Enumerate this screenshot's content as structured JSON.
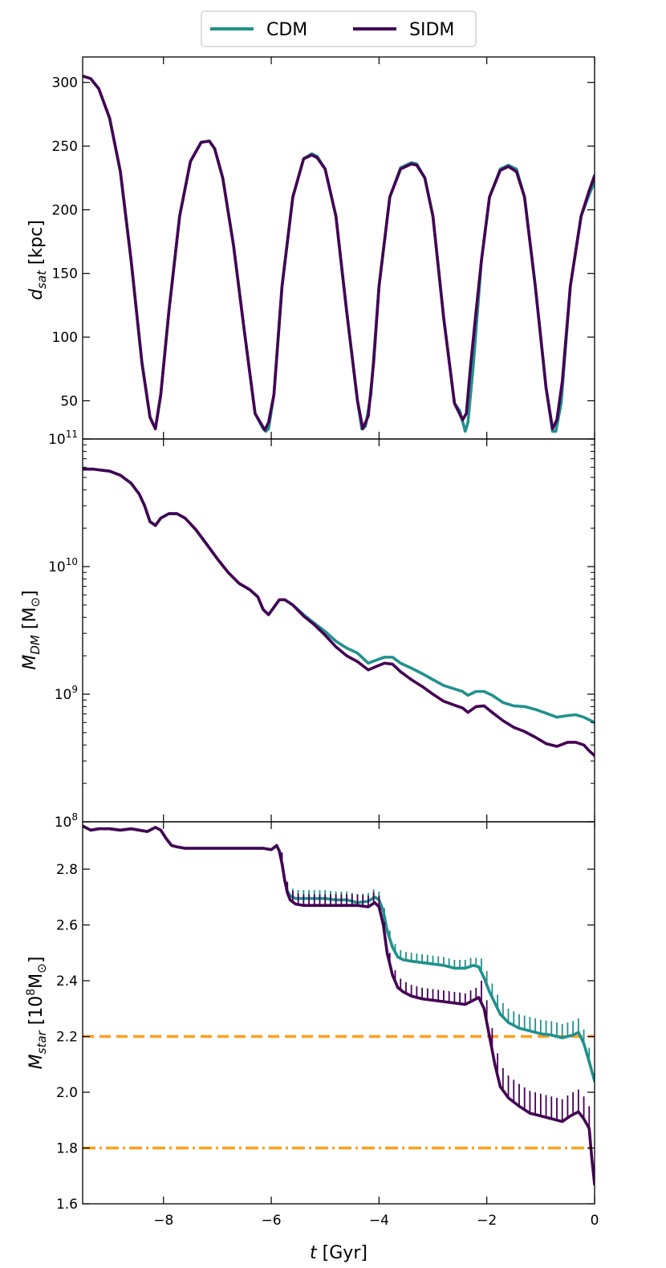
{
  "legend": {
    "items": [
      {
        "label": "CDM",
        "color": "#21918c"
      },
      {
        "label": "SIDM",
        "color": "#440154"
      }
    ]
  },
  "shared_x": {
    "label_italic": "t",
    "label_rest": " [Gyr]",
    "range": [
      -9.5,
      0
    ],
    "ticks": [
      -8,
      -6,
      -4,
      -2,
      0
    ],
    "tick_labels": [
      "−8",
      "−6",
      "−4",
      "−2",
      "0"
    ]
  },
  "chart_data": [
    {
      "type": "line",
      "panel": "top",
      "ylabel_main": "d",
      "ylabel_sub": "sat",
      "ylabel_rest": " [kpc]",
      "yscale": "linear",
      "ylim": [
        20,
        320
      ],
      "yticks": [
        50,
        100,
        150,
        200,
        250,
        300
      ],
      "ytick_labels": [
        "50",
        "100",
        "150",
        "200",
        "250",
        "300"
      ],
      "series": [
        {
          "name": "CDM",
          "x": [
            -9.5,
            -9.35,
            -9.2,
            -9.0,
            -8.8,
            -8.6,
            -8.4,
            -8.25,
            -8.15,
            -8.05,
            -7.9,
            -7.7,
            -7.5,
            -7.3,
            -7.15,
            -7.05,
            -6.9,
            -6.7,
            -6.5,
            -6.3,
            -6.15,
            -6.1,
            -6.05,
            -5.95,
            -5.8,
            -5.6,
            -5.4,
            -5.25,
            -5.15,
            -5.0,
            -4.8,
            -4.6,
            -4.4,
            -4.32,
            -4.25,
            -4.15,
            -4.0,
            -3.8,
            -3.6,
            -3.4,
            -3.3,
            -3.15,
            -3.0,
            -2.8,
            -2.6,
            -2.5,
            -2.4,
            -2.35,
            -2.25,
            -2.1,
            -1.95,
            -1.75,
            -1.6,
            -1.45,
            -1.3,
            -1.1,
            -0.9,
            -0.78,
            -0.72,
            -0.62,
            -0.45,
            -0.25,
            -0.1,
            0.0
          ],
          "y": [
            305,
            303,
            295,
            272,
            230,
            160,
            80,
            37,
            28,
            55,
            120,
            195,
            238,
            253,
            254,
            248,
            225,
            172,
            105,
            40,
            28,
            26,
            28,
            55,
            140,
            210,
            240,
            244,
            242,
            232,
            195,
            120,
            50,
            28,
            30,
            55,
            140,
            210,
            233,
            237,
            236,
            225,
            195,
            115,
            48,
            42,
            26,
            33,
            78,
            160,
            210,
            232,
            235,
            232,
            210,
            140,
            60,
            26,
            26,
            48,
            140,
            195,
            212,
            222
          ]
        },
        {
          "name": "SIDM",
          "x": [
            -9.5,
            -9.35,
            -9.2,
            -9.0,
            -8.8,
            -8.6,
            -8.4,
            -8.25,
            -8.15,
            -8.05,
            -7.9,
            -7.7,
            -7.5,
            -7.3,
            -7.15,
            -7.05,
            -6.9,
            -6.7,
            -6.5,
            -6.3,
            -6.12,
            -6.05,
            -5.95,
            -5.8,
            -5.6,
            -5.4,
            -5.25,
            -5.15,
            -5.0,
            -4.8,
            -4.6,
            -4.4,
            -4.3,
            -4.2,
            -4.1,
            -4.0,
            -3.8,
            -3.6,
            -3.4,
            -3.3,
            -3.15,
            -3.0,
            -2.8,
            -2.6,
            -2.45,
            -2.38,
            -2.3,
            -2.2,
            -2.1,
            -1.95,
            -1.75,
            -1.6,
            -1.45,
            -1.3,
            -1.1,
            -0.9,
            -0.78,
            -0.7,
            -0.6,
            -0.45,
            -0.25,
            -0.1,
            0.0
          ],
          "y": [
            305,
            303,
            295,
            272,
            230,
            160,
            80,
            37,
            28,
            55,
            120,
            195,
            238,
            253,
            254,
            248,
            225,
            172,
            105,
            40,
            27,
            33,
            55,
            140,
            210,
            240,
            243,
            241,
            232,
            195,
            120,
            50,
            28,
            38,
            80,
            140,
            210,
            232,
            236,
            235,
            225,
            195,
            115,
            48,
            35,
            40,
            78,
            120,
            160,
            210,
            231,
            234,
            230,
            210,
            140,
            60,
            28,
            35,
            65,
            140,
            195,
            215,
            227
          ]
        }
      ]
    },
    {
      "type": "line",
      "panel": "middle",
      "ylabel_main": "M",
      "ylabel_sub": "DM",
      "ylabel_rest_pre": " [M",
      "ylabel_rest_sun": "⊙",
      "ylabel_rest_post": "]",
      "yscale": "log",
      "ylim": [
        100000000.0,
        100000000000.0
      ],
      "yticks": [
        100000000.0,
        1000000000.0,
        10000000000.0,
        100000000000.0
      ],
      "ytick_labels": [
        "10",
        "10",
        "10",
        "10"
      ],
      "ytick_exponents": [
        "8",
        "9",
        "10",
        "11"
      ],
      "series": [
        {
          "name": "CDM",
          "x": [
            -9.5,
            -9.3,
            -9.0,
            -8.8,
            -8.6,
            -8.45,
            -8.35,
            -8.25,
            -8.15,
            -8.05,
            -7.9,
            -7.75,
            -7.6,
            -7.4,
            -7.2,
            -7.0,
            -6.8,
            -6.6,
            -6.4,
            -6.25,
            -6.15,
            -6.05,
            -5.95,
            -5.85,
            -5.75,
            -5.6,
            -5.4,
            -5.2,
            -5.0,
            -4.8,
            -4.6,
            -4.4,
            -4.2,
            -4.05,
            -3.9,
            -3.75,
            -3.6,
            -3.4,
            -3.2,
            -3.0,
            -2.8,
            -2.6,
            -2.45,
            -2.35,
            -2.2,
            -2.05,
            -1.9,
            -1.7,
            -1.5,
            -1.3,
            -1.1,
            -0.9,
            -0.7,
            -0.5,
            -0.35,
            -0.2,
            -0.1,
            0.0
          ],
          "y": [
            58000000000.0,
            58000000000.0,
            56000000000.0,
            52000000000.0,
            45000000000.0,
            37000000000.0,
            30000000000.0,
            22500000000.0,
            21000000000.0,
            24000000000.0,
            26000000000.0,
            26000000000.0,
            24000000000.0,
            19500000000.0,
            15000000000.0,
            11500000000.0,
            9000000000.0,
            7400000000.0,
            6600000000.0,
            5800000000.0,
            4600000000.0,
            4200000000.0,
            4800000000.0,
            5500000000.0,
            5500000000.0,
            5000000000.0,
            4200000000.0,
            3600000000.0,
            3100000000.0,
            2600000000.0,
            2300000000.0,
            2100000000.0,
            1750000000.0,
            1850000000.0,
            1950000000.0,
            1950000000.0,
            1750000000.0,
            1600000000.0,
            1450000000.0,
            1300000000.0,
            1170000000.0,
            1100000000.0,
            1050000000.0,
            980000000.0,
            1050000000.0,
            1050000000.0,
            980000000.0,
            860000000.0,
            810000000.0,
            800000000.0,
            760000000.0,
            710000000.0,
            660000000.0,
            680000000.0,
            690000000.0,
            660000000.0,
            630000000.0,
            600000000.0
          ]
        },
        {
          "name": "SIDM",
          "x": [
            -9.5,
            -9.3,
            -9.0,
            -8.8,
            -8.6,
            -8.45,
            -8.35,
            -8.25,
            -8.15,
            -8.05,
            -7.9,
            -7.75,
            -7.6,
            -7.4,
            -7.2,
            -7.0,
            -6.8,
            -6.6,
            -6.4,
            -6.25,
            -6.15,
            -6.05,
            -5.95,
            -5.85,
            -5.75,
            -5.6,
            -5.4,
            -5.2,
            -5.0,
            -4.8,
            -4.6,
            -4.4,
            -4.2,
            -4.05,
            -3.9,
            -3.75,
            -3.6,
            -3.4,
            -3.2,
            -3.0,
            -2.8,
            -2.6,
            -2.45,
            -2.35,
            -2.2,
            -2.05,
            -1.9,
            -1.7,
            -1.5,
            -1.3,
            -1.1,
            -0.9,
            -0.7,
            -0.5,
            -0.35,
            -0.2,
            -0.1,
            0.0
          ],
          "y": [
            58000000000.0,
            58000000000.0,
            56000000000.0,
            52000000000.0,
            45000000000.0,
            37000000000.0,
            30000000000.0,
            22500000000.0,
            21000000000.0,
            24000000000.0,
            26000000000.0,
            26000000000.0,
            24000000000.0,
            19500000000.0,
            15000000000.0,
            11500000000.0,
            9000000000.0,
            7400000000.0,
            6600000000.0,
            5800000000.0,
            4600000000.0,
            4200000000.0,
            4800000000.0,
            5500000000.0,
            5500000000.0,
            5000000000.0,
            4100000000.0,
            3500000000.0,
            2900000000.0,
            2350000000.0,
            2000000000.0,
            1800000000.0,
            1550000000.0,
            1650000000.0,
            1750000000.0,
            1720000000.0,
            1500000000.0,
            1300000000.0,
            1150000000.0,
            1000000000.0,
            880000000.0,
            820000000.0,
            780000000.0,
            720000000.0,
            800000000.0,
            810000000.0,
            720000000.0,
            620000000.0,
            550000000.0,
            510000000.0,
            460000000.0,
            410000000.0,
            390000000.0,
            420000000.0,
            420000000.0,
            400000000.0,
            360000000.0,
            330000000.0
          ]
        }
      ]
    },
    {
      "type": "line",
      "panel": "bottom",
      "ylabel_main": "M",
      "ylabel_sub": "star",
      "ylabel_rest_pre": " [10",
      "ylabel_rest_sup": "8",
      "ylabel_rest_m": "M",
      "ylabel_rest_sun": "⊙",
      "ylabel_rest_post": "]",
      "yscale": "linear",
      "ylim": [
        1.6,
        2.97
      ],
      "yticks": [
        1.6,
        1.8,
        2.0,
        2.2,
        2.4,
        2.6,
        2.8
      ],
      "ytick_labels": [
        "1.6",
        "1.8",
        "2.0",
        "2.2",
        "2.4",
        "2.6",
        "2.8"
      ],
      "hlines": [
        {
          "y": 2.2,
          "style": "dashed",
          "color": "#ff9f1c"
        },
        {
          "y": 1.8,
          "style": "dashdot",
          "color": "#ff9f1c"
        }
      ],
      "series": [
        {
          "name": "CDM",
          "x": [
            -9.5,
            -9.35,
            -9.2,
            -9.0,
            -8.8,
            -8.6,
            -8.45,
            -8.3,
            -8.15,
            -8.05,
            -7.95,
            -7.85,
            -7.75,
            -7.6,
            -7.3,
            -7.0,
            -6.7,
            -6.4,
            -6.15,
            -6.0,
            -5.9,
            -5.85,
            -5.8,
            -5.75,
            -5.7,
            -5.65,
            -5.55,
            -5.4,
            -5.2,
            -5.0,
            -4.8,
            -4.6,
            -4.4,
            -4.2,
            -4.08,
            -4.0,
            -3.92,
            -3.85,
            -3.75,
            -3.65,
            -3.55,
            -3.4,
            -3.2,
            -3.0,
            -2.8,
            -2.6,
            -2.4,
            -2.25,
            -2.15,
            -2.05,
            -1.95,
            -1.85,
            -1.75,
            -1.6,
            -1.4,
            -1.2,
            -1.0,
            -0.8,
            -0.6,
            -0.5,
            -0.4,
            -0.3,
            -0.2,
            -0.1,
            0.0
          ],
          "y": [
            2.955,
            2.94,
            2.945,
            2.945,
            2.94,
            2.945,
            2.94,
            2.935,
            2.95,
            2.94,
            2.91,
            2.885,
            2.88,
            2.875,
            2.875,
            2.875,
            2.875,
            2.875,
            2.875,
            2.87,
            2.885,
            2.865,
            2.82,
            2.76,
            2.72,
            2.705,
            2.695,
            2.695,
            2.695,
            2.695,
            2.69,
            2.69,
            2.68,
            2.685,
            2.7,
            2.69,
            2.65,
            2.58,
            2.52,
            2.485,
            2.475,
            2.47,
            2.465,
            2.46,
            2.455,
            2.445,
            2.445,
            2.455,
            2.45,
            2.41,
            2.36,
            2.32,
            2.28,
            2.25,
            2.23,
            2.22,
            2.21,
            2.205,
            2.195,
            2.2,
            2.205,
            2.215,
            2.175,
            2.11,
            2.04
          ]
        },
        {
          "name": "SIDM",
          "x": [
            -9.5,
            -9.35,
            -9.2,
            -9.0,
            -8.8,
            -8.6,
            -8.45,
            -8.3,
            -8.15,
            -8.05,
            -7.95,
            -7.85,
            -7.75,
            -7.6,
            -7.3,
            -7.0,
            -6.7,
            -6.4,
            -6.15,
            -6.0,
            -5.9,
            -5.85,
            -5.8,
            -5.75,
            -5.7,
            -5.65,
            -5.55,
            -5.4,
            -5.2,
            -5.0,
            -4.8,
            -4.6,
            -4.4,
            -4.2,
            -4.08,
            -4.0,
            -3.92,
            -3.85,
            -3.75,
            -3.65,
            -3.55,
            -3.4,
            -3.2,
            -3.0,
            -2.8,
            -2.6,
            -2.4,
            -2.25,
            -2.15,
            -2.05,
            -1.95,
            -1.85,
            -1.75,
            -1.6,
            -1.4,
            -1.2,
            -1.0,
            -0.8,
            -0.6,
            -0.45,
            -0.3,
            -0.2,
            -0.1,
            -0.05,
            0.0
          ],
          "y": [
            2.955,
            2.94,
            2.945,
            2.945,
            2.94,
            2.945,
            2.94,
            2.935,
            2.95,
            2.94,
            2.91,
            2.885,
            2.88,
            2.875,
            2.875,
            2.875,
            2.875,
            2.875,
            2.875,
            2.87,
            2.885,
            2.865,
            2.82,
            2.76,
            2.715,
            2.69,
            2.675,
            2.67,
            2.67,
            2.67,
            2.67,
            2.67,
            2.67,
            2.665,
            2.68,
            2.665,
            2.6,
            2.5,
            2.42,
            2.375,
            2.36,
            2.345,
            2.335,
            2.33,
            2.325,
            2.32,
            2.315,
            2.33,
            2.34,
            2.3,
            2.2,
            2.1,
            2.02,
            1.98,
            1.95,
            1.925,
            1.915,
            1.905,
            1.895,
            1.915,
            1.93,
            1.905,
            1.87,
            1.76,
            1.67
          ]
        }
      ]
    }
  ]
}
